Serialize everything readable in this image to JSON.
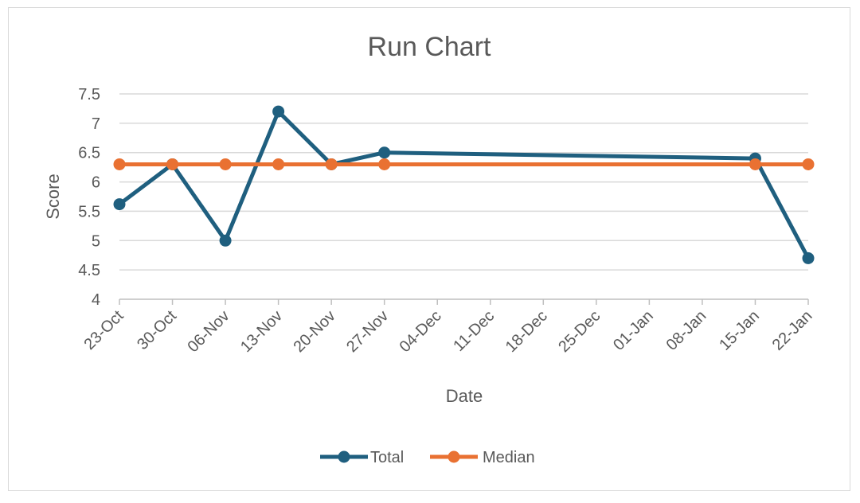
{
  "chart_data": {
    "type": "line",
    "title": "Run Chart",
    "xlabel": "Date",
    "ylabel": "Score",
    "ylim": [
      4,
      7.5
    ],
    "yticks": [
      "4",
      "4.5",
      "5",
      "5.5",
      "6",
      "6.5",
      "7",
      "7.5"
    ],
    "ytick_values": [
      4,
      4.5,
      5,
      5.5,
      6,
      6.5,
      7,
      7.5
    ],
    "xtick_labels": [
      "23-Oct",
      "30-Oct",
      "06-Nov",
      "13-Nov",
      "20-Nov",
      "27-Nov",
      "04-Dec",
      "11-Dec",
      "18-Dec",
      "25-Dec",
      "01-Jan",
      "08-Jan",
      "15-Jan",
      "22-Jan"
    ],
    "x": [
      "23-Oct",
      "30-Oct",
      "06-Nov",
      "13-Nov",
      "20-Nov",
      "27-Nov",
      "15-Jan",
      "22-Jan"
    ],
    "series": [
      {
        "name": "Total",
        "color": "#1f5f7f",
        "values": [
          5.62,
          6.3,
          5.0,
          7.2,
          6.3,
          6.5,
          6.4,
          4.7
        ]
      },
      {
        "name": "Median",
        "color": "#e97132",
        "values": [
          6.3,
          6.3,
          6.3,
          6.3,
          6.3,
          6.3,
          6.3,
          6.3
        ]
      }
    ],
    "grid": "horizontal",
    "legend_position": "bottom"
  }
}
